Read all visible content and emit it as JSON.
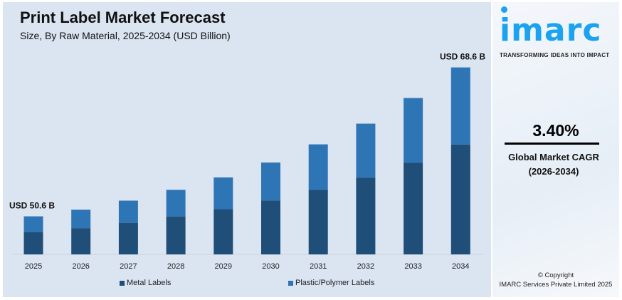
{
  "title": "Print Label Market Forecast",
  "subtitle": "Size, By Raw Material, 2025-2034 (USD Billion)",
  "brand": {
    "logo": "imarc",
    "tagline": "TRANSFORMING IDEAS INTO IMPACT",
    "logo_color": "#1ba3f0"
  },
  "cagr": {
    "value": "3.40%",
    "label": "Global Market CAGR",
    "period": "(2026-2034)"
  },
  "copyright": {
    "line1": "© Copyright",
    "line2": "IMARC Services Private Limited 2025"
  },
  "chart_data": {
    "type": "bar",
    "stacked": true,
    "categories": [
      "2025",
      "2026",
      "2027",
      "2028",
      "2029",
      "2030",
      "2031",
      "2032",
      "2033",
      "2034"
    ],
    "series": [
      {
        "name": "Metal Labels",
        "color": "#1f4e79",
        "values": [
          29.7,
          30.2,
          30.8,
          31.6,
          32.5,
          33.5,
          34.8,
          36.3,
          38.1,
          40.3
        ]
      },
      {
        "name": "Plastic/Polymer Labels",
        "color": "#2e75b6",
        "values": [
          20.9,
          21.2,
          21.7,
          22.2,
          22.8,
          23.6,
          24.5,
          25.5,
          26.8,
          28.3
        ]
      }
    ],
    "annotations": [
      {
        "category": "2025",
        "text": "USD 50.6 B"
      },
      {
        "category": "2034",
        "text": "USD 68.6 B"
      }
    ],
    "xlabel": "",
    "ylabel": "",
    "grid": false,
    "legend": "bottom"
  }
}
